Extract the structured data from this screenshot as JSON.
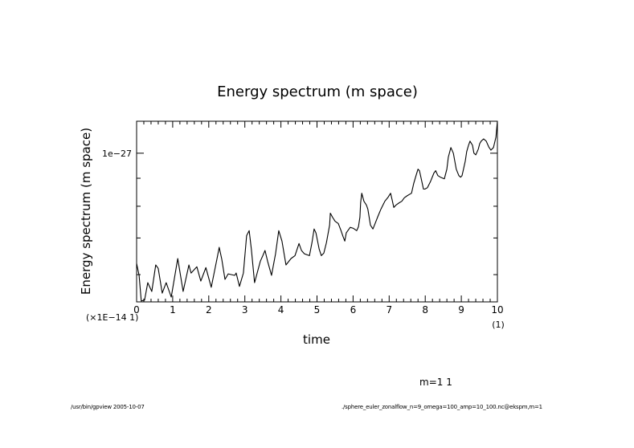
{
  "chart_data": {
    "type": "line",
    "title": "Energy spectrum (m space)",
    "xlabel": "time",
    "ylabel": "Energy spectrum (m space)",
    "x_scale_note": "(×1E−14 1)",
    "x_unit_note": "(1)",
    "xlim": [
      0,
      10
    ],
    "x_ticks": [
      "0",
      "1",
      "2",
      "3",
      "4",
      "5",
      "6",
      "7",
      "8",
      "9",
      "10"
    ],
    "x_minor_step": 0.2,
    "yscale": "log",
    "ylim": [
      5.35e-28,
      1.144e-27
    ],
    "y_ticks": [
      {
        "value": 1e-27,
        "label": "1e−27"
      }
    ],
    "y_minor_ticks": [
      6e-28,
      7e-28,
      8e-28,
      9e-28
    ],
    "legend_text": "m=1  1",
    "grid": false,
    "series": [
      {
        "name": "m=1",
        "x": [
          0.0,
          0.07,
          0.13,
          0.22,
          0.31,
          0.42,
          0.53,
          0.6,
          0.71,
          0.82,
          0.96,
          1.14,
          1.29,
          1.45,
          1.51,
          1.67,
          1.78,
          1.92,
          2.07,
          2.23,
          2.29,
          2.36,
          2.45,
          2.54,
          2.72,
          2.76,
          2.85,
          2.96,
          3.05,
          3.12,
          3.18,
          3.27,
          3.43,
          3.5,
          3.56,
          3.63,
          3.74,
          3.85,
          3.94,
          4.03,
          4.14,
          4.28,
          4.39,
          4.5,
          4.57,
          4.65,
          4.79,
          4.86,
          4.92,
          4.97,
          5.06,
          5.12,
          5.19,
          5.26,
          5.35,
          5.37,
          5.43,
          5.5,
          5.59,
          5.66,
          5.72,
          5.77,
          5.81,
          5.92,
          6.01,
          6.1,
          6.15,
          6.19,
          6.21,
          6.24,
          6.3,
          6.37,
          6.41,
          6.48,
          6.55,
          6.61,
          6.68,
          6.77,
          6.88,
          6.97,
          7.04,
          7.08,
          7.13,
          7.19,
          7.28,
          7.35,
          7.42,
          7.51,
          7.62,
          7.68,
          7.75,
          7.8,
          7.84,
          7.88,
          7.95,
          7.99,
          8.06,
          8.15,
          8.24,
          8.29,
          8.35,
          8.42,
          8.53,
          8.6,
          8.64,
          8.71,
          8.78,
          8.82,
          8.86,
          8.93,
          8.98,
          9.02,
          9.06,
          9.11,
          9.15,
          9.2,
          9.24,
          9.31,
          9.35,
          9.4,
          9.47,
          9.51,
          9.55,
          9.62,
          9.69,
          9.76,
          9.82,
          9.89,
          9.96,
          10.0
        ],
        "y": [
          6.29e-28,
          5.98e-28,
          5.37e-28,
          5.39e-28,
          5.8e-28,
          5.59e-28,
          6.25e-28,
          6.16e-28,
          5.55e-28,
          5.8e-28,
          5.46e-28,
          6.42e-28,
          5.59e-28,
          6.25e-28,
          6.04e-28,
          6.2e-28,
          5.84e-28,
          6.18e-28,
          5.69e-28,
          6.42e-28,
          6.73e-28,
          6.4e-28,
          5.88e-28,
          6.02e-28,
          5.98e-28,
          6.04e-28,
          5.71e-28,
          6.04e-28,
          7.07e-28,
          7.22e-28,
          6.68e-28,
          5.8e-28,
          6.35e-28,
          6.5e-28,
          6.64e-28,
          6.35e-28,
          5.98e-28,
          6.55e-28,
          7.22e-28,
          6.91e-28,
          6.25e-28,
          6.42e-28,
          6.5e-28,
          6.84e-28,
          6.64e-28,
          6.55e-28,
          6.5e-28,
          6.86e-28,
          7.27e-28,
          7.15e-28,
          6.68e-28,
          6.5e-28,
          6.57e-28,
          6.86e-28,
          7.39e-28,
          7.77e-28,
          7.64e-28,
          7.51e-28,
          7.44e-28,
          7.24e-28,
          7.05e-28,
          6.91e-28,
          7.15e-28,
          7.32e-28,
          7.29e-28,
          7.22e-28,
          7.34e-28,
          7.64e-28,
          8.12e-28,
          8.45e-28,
          8.17e-28,
          8.04e-28,
          7.9e-28,
          7.39e-28,
          7.27e-28,
          7.44e-28,
          7.64e-28,
          7.9e-28,
          8.17e-28,
          8.31e-28,
          8.45e-28,
          8.23e-28,
          7.96e-28,
          8.04e-28,
          8.12e-28,
          8.17e-28,
          8.29e-28,
          8.37e-28,
          8.45e-28,
          8.8e-28,
          9.13e-28,
          9.35e-28,
          9.29e-28,
          9.04e-28,
          8.6e-28,
          8.6e-28,
          8.65e-28,
          8.89e-28,
          9.2e-28,
          9.29e-28,
          9.1e-28,
          9.04e-28,
          8.98e-28,
          9.35e-28,
          9.83e-28,
          1.024e-27,
          1e-27,
          9.67e-28,
          9.35e-28,
          9.1e-28,
          9.04e-28,
          9.1e-28,
          9.35e-28,
          9.67e-28,
          1.007e-27,
          1.034e-27,
          1.052e-27,
          1.034e-27,
          1e-27,
          9.93e-28,
          1.017e-27,
          1.041e-27,
          1.052e-27,
          1.062e-27,
          1.052e-27,
          1.027e-27,
          1.013e-27,
          1.024e-27,
          1.07e-27,
          1.144e-27
        ]
      }
    ]
  },
  "footer": {
    "left": "/usr/bin/gpview  2005-10-07",
    "right": "./sphere_euler_zonalflow_n=9_omega=100_amp=10_100.nc@ekspm,m=1"
  }
}
